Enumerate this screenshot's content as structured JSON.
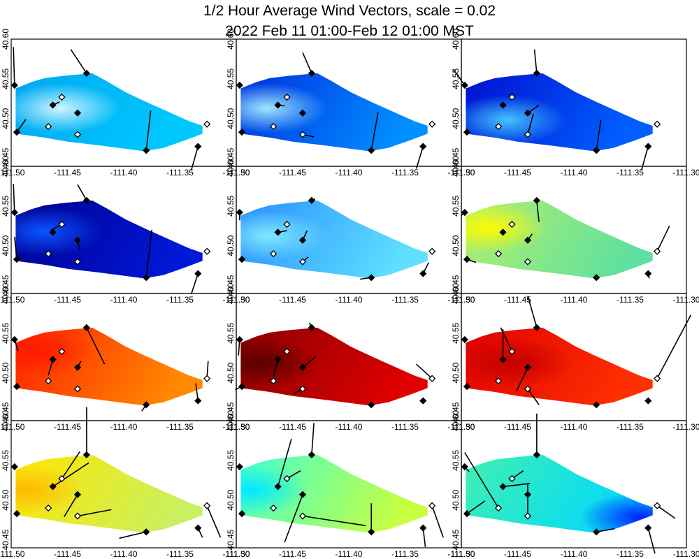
{
  "chart_data": {
    "type": "heatmap",
    "title": "1/2 Hour Average Wind Vectors, scale =  0.02",
    "subtitle": "2022 Feb 11 01:00-Feb 12 01:00 MST",
    "xlabel": "",
    "ylabel": "",
    "xlim": [
      -111.5,
      -111.3
    ],
    "ylim": [
      40.44,
      40.6
    ],
    "x_ticks": [
      {
        "value": -111.5,
        "label": "-111.50"
      },
      {
        "value": -111.45,
        "label": "-111.45"
      },
      {
        "value": -111.4,
        "label": "-111.40"
      },
      {
        "value": -111.35,
        "label": "-111.35"
      },
      {
        "value": -111.3,
        "label": "-111.30"
      }
    ],
    "y_ticks": [
      {
        "value": 40.45,
        "label": "40.45"
      },
      {
        "value": 40.5,
        "label": "40.50"
      },
      {
        "value": 40.55,
        "label": "40.55"
      },
      {
        "value": 40.6,
        "label": "40.60"
      }
    ],
    "grid": false,
    "legend": "none",
    "domain_polygon": [
      [
        -111.496,
        40.538
      ],
      [
        -111.482,
        40.546
      ],
      [
        -111.47,
        40.551
      ],
      [
        -111.452,
        40.554
      ],
      [
        -111.428,
        40.557
      ],
      [
        -111.415,
        40.547
      ],
      [
        -111.398,
        40.533
      ],
      [
        -111.38,
        40.521
      ],
      [
        -111.358,
        40.507
      ],
      [
        -111.342,
        40.497
      ],
      [
        -111.33,
        40.491
      ],
      [
        -111.33,
        40.481
      ],
      [
        -111.345,
        40.473
      ],
      [
        -111.365,
        40.463
      ],
      [
        -111.382,
        40.459
      ],
      [
        -111.42,
        40.466
      ],
      [
        -111.45,
        40.471
      ],
      [
        -111.47,
        40.476
      ],
      [
        -111.496,
        40.481
      ]
    ],
    "stations": [
      {
        "id": "S1",
        "lon": -111.497,
        "lat": 40.542,
        "filled": true
      },
      {
        "id": "S2",
        "lon": -111.495,
        "lat": 40.483,
        "filled": true
      },
      {
        "id": "S3",
        "lon": -111.463,
        "lat": 40.517,
        "filled": true
      },
      {
        "id": "S4",
        "lon": -111.455,
        "lat": 40.527,
        "filled": false
      },
      {
        "id": "S5",
        "lon": -111.467,
        "lat": 40.49,
        "filled": false
      },
      {
        "id": "S6",
        "lon": -111.441,
        "lat": 40.507,
        "filled": true
      },
      {
        "id": "S7",
        "lon": -111.441,
        "lat": 40.48,
        "filled": false
      },
      {
        "id": "S8",
        "lon": -111.433,
        "lat": 40.557,
        "filled": true
      },
      {
        "id": "S9",
        "lon": -111.38,
        "lat": 40.46,
        "filled": true
      },
      {
        "id": "S10",
        "lon": -111.334,
        "lat": 40.465,
        "filled": true
      },
      {
        "id": "S11",
        "lon": -111.326,
        "lat": 40.493,
        "filled": false
      }
    ],
    "panels": [
      {
        "field": {
          "cA": "#00a8f0",
          "cB": "#00c8ff",
          "hotspot": "#cff5ff",
          "hx": 0.24,
          "hy": 0.45
        },
        "vectors": [
          [
            0,
            -0.001,
            0.048
          ],
          [
            1,
            0.008,
            0.016
          ],
          [
            2,
            0.006,
            0.004
          ],
          [
            7,
            -0.014,
            0.03
          ],
          [
            8,
            0.004,
            0.05
          ],
          [
            9,
            -0.006,
            -0.03
          ]
        ]
      },
      {
        "field": {
          "cA": "#0030e0",
          "cB": "#0090ff",
          "hotspot": "#9fe7ff",
          "hx": 0.14,
          "hy": 0.45
        },
        "vectors": [
          [
            0,
            0.0,
            0.0
          ],
          [
            2,
            0.006,
            -0.001
          ],
          [
            6,
            0.01,
            -0.003
          ],
          [
            7,
            -0.008,
            0.026
          ],
          [
            8,
            0.006,
            0.048
          ],
          [
            9,
            -0.006,
            -0.028
          ]
        ]
      },
      {
        "field": {
          "cA": "#0010d0",
          "cB": "#0060ff",
          "hotspot": "#43c4ff",
          "hx": 0.22,
          "hy": 0.6
        },
        "vectors": [
          [
            0,
            -0.01,
            0.02
          ],
          [
            5,
            0.01,
            0.01
          ],
          [
            6,
            0.005,
            0.026
          ],
          [
            7,
            -0.002,
            0.03
          ],
          [
            8,
            0.004,
            0.038
          ],
          [
            9,
            -0.006,
            -0.03
          ]
        ]
      },
      {
        "field": {
          "cA": "#000090",
          "cB": "#0018d8",
          "hotspot": "#0c55ff",
          "hx": 0.15,
          "hy": 0.4
        },
        "vectors": [
          [
            0,
            -0.001,
            0.036
          ],
          [
            1,
            -0.002,
            0.028
          ],
          [
            3,
            -0.01,
            -0.008
          ],
          [
            5,
            0.002,
            -0.012
          ],
          [
            7,
            -0.008,
            0.02
          ],
          [
            8,
            0.005,
            0.06
          ],
          [
            9,
            -0.006,
            -0.026
          ]
        ]
      },
      {
        "field": {
          "cA": "#2a90ff",
          "cB": "#5fe0ff",
          "hotspot": "#7fe8ff",
          "hx": 0.15,
          "hy": 0.45
        },
        "vectors": [
          [
            0,
            0.0,
            -0.01
          ],
          [
            2,
            0.008,
            0.002
          ],
          [
            5,
            0.004,
            0.012
          ],
          [
            6,
            0.005,
            0.006
          ],
          [
            7,
            0.003,
            0.002
          ],
          [
            8,
            -0.01,
            -0.002
          ],
          [
            9,
            0.005,
            0.014
          ]
        ]
      },
      {
        "field": {
          "cA": "#b5f06a",
          "cB": "#5ee0a0",
          "hotspot": "#fffb00",
          "hx": 0.12,
          "hy": 0.35
        },
        "vectors": [
          [
            0,
            -0.003,
            -0.004
          ],
          [
            1,
            0.008,
            -0.004
          ],
          [
            2,
            0.001,
            0.002
          ],
          [
            5,
            0.004,
            0.008
          ],
          [
            7,
            0.002,
            -0.027
          ],
          [
            10,
            0.011,
            0.032
          ],
          [
            9,
            0.001,
            -0.006
          ]
        ]
      },
      {
        "field": {
          "cA": "#ff2000",
          "cB": "#ff8a00",
          "hotspot": "#ff1a00",
          "hx": 0.1,
          "hy": 0.3
        },
        "vectors": [
          [
            0,
            0.003,
            -0.014
          ],
          [
            2,
            -0.004,
            -0.02
          ],
          [
            5,
            0.003,
            0.008
          ],
          [
            7,
            0.016,
            -0.046
          ],
          [
            9,
            -0.002,
            0.022
          ],
          [
            10,
            0.001,
            0.022
          ],
          [
            8,
            -0.004,
            -0.008
          ]
        ]
      },
      {
        "field": {
          "cA": "#8a0000",
          "cB": "#e00000",
          "hotspot": "#5a0000",
          "hx": 0.1,
          "hy": 0.45
        },
        "vectors": [
          [
            0,
            -0.001,
            -0.02
          ],
          [
            1,
            -0.006,
            -0.004
          ],
          [
            2,
            -0.004,
            -0.022
          ],
          [
            5,
            0.012,
            0.014
          ],
          [
            6,
            -0.008,
            -0.006
          ],
          [
            7,
            -0.002,
            0.006
          ],
          [
            10,
            -0.014,
            0.018
          ]
        ]
      },
      {
        "field": {
          "cA": "#e00000",
          "cB": "#ff3000",
          "hotspot": "#c00000",
          "hx": 0.25,
          "hy": 0.45
        },
        "vectors": [
          [
            0,
            0.0,
            0.0
          ],
          [
            2,
            0.0,
            0.038
          ],
          [
            3,
            -0.01,
            0.03
          ],
          [
            5,
            -0.01,
            -0.03
          ],
          [
            6,
            0.01,
            -0.02
          ],
          [
            7,
            -0.008,
            0.04
          ],
          [
            10,
            0.03,
            0.08
          ],
          [
            11,
            0.03,
            0.01
          ]
        ]
      },
      {
        "field": {
          "cA": "#ffe600",
          "cB": "#c8f060",
          "hotspot": "#ffb800",
          "hx": 0.05,
          "hy": 0.45
        },
        "vectors": [
          [
            2,
            0.032,
            0.03
          ],
          [
            3,
            0.016,
            0.034
          ],
          [
            5,
            -0.012,
            -0.028
          ],
          [
            6,
            0.03,
            0.008
          ],
          [
            7,
            0.0,
            0.06
          ],
          [
            8,
            -0.024,
            -0.008
          ],
          [
            9,
            0.004,
            -0.012
          ],
          [
            10,
            0.012,
            -0.04
          ]
        ]
      },
      {
        "field": {
          "cA": "#40ffd0",
          "cB": "#c8ff40",
          "hotspot": "#00e8ff",
          "hx": 0.05,
          "hy": 0.45
        },
        "vectors": [
          [
            2,
            0.012,
            0.06
          ],
          [
            3,
            0.012,
            0.01
          ],
          [
            5,
            -0.016,
            -0.06
          ],
          [
            6,
            0.056,
            -0.012
          ],
          [
            7,
            0.002,
            0.04
          ],
          [
            8,
            0.0,
            0.036
          ],
          [
            9,
            0.002,
            -0.024
          ],
          [
            10,
            0.01,
            -0.04
          ]
        ]
      },
      {
        "field": {
          "cA": "#40f0b0",
          "cB": "#00d8ff",
          "hotspot": "#0020ff",
          "hx": 0.93,
          "hy": 0.8
        },
        "vectors": [
          [
            0,
            0.004,
            -0.006
          ],
          [
            1,
            0.016,
            0.016
          ],
          [
            2,
            0.024,
            0.004
          ],
          [
            3,
            0.01,
            0.01
          ],
          [
            4,
            -0.03,
            0.07
          ],
          [
            6,
            0.0,
            0.04
          ],
          [
            7,
            0.0,
            0.052
          ],
          [
            8,
            0.016,
            0.004
          ],
          [
            9,
            0.006,
            -0.032
          ],
          [
            10,
            0.016,
            -0.016
          ],
          [
            11,
            0.012,
            0.06
          ]
        ]
      }
    ]
  }
}
